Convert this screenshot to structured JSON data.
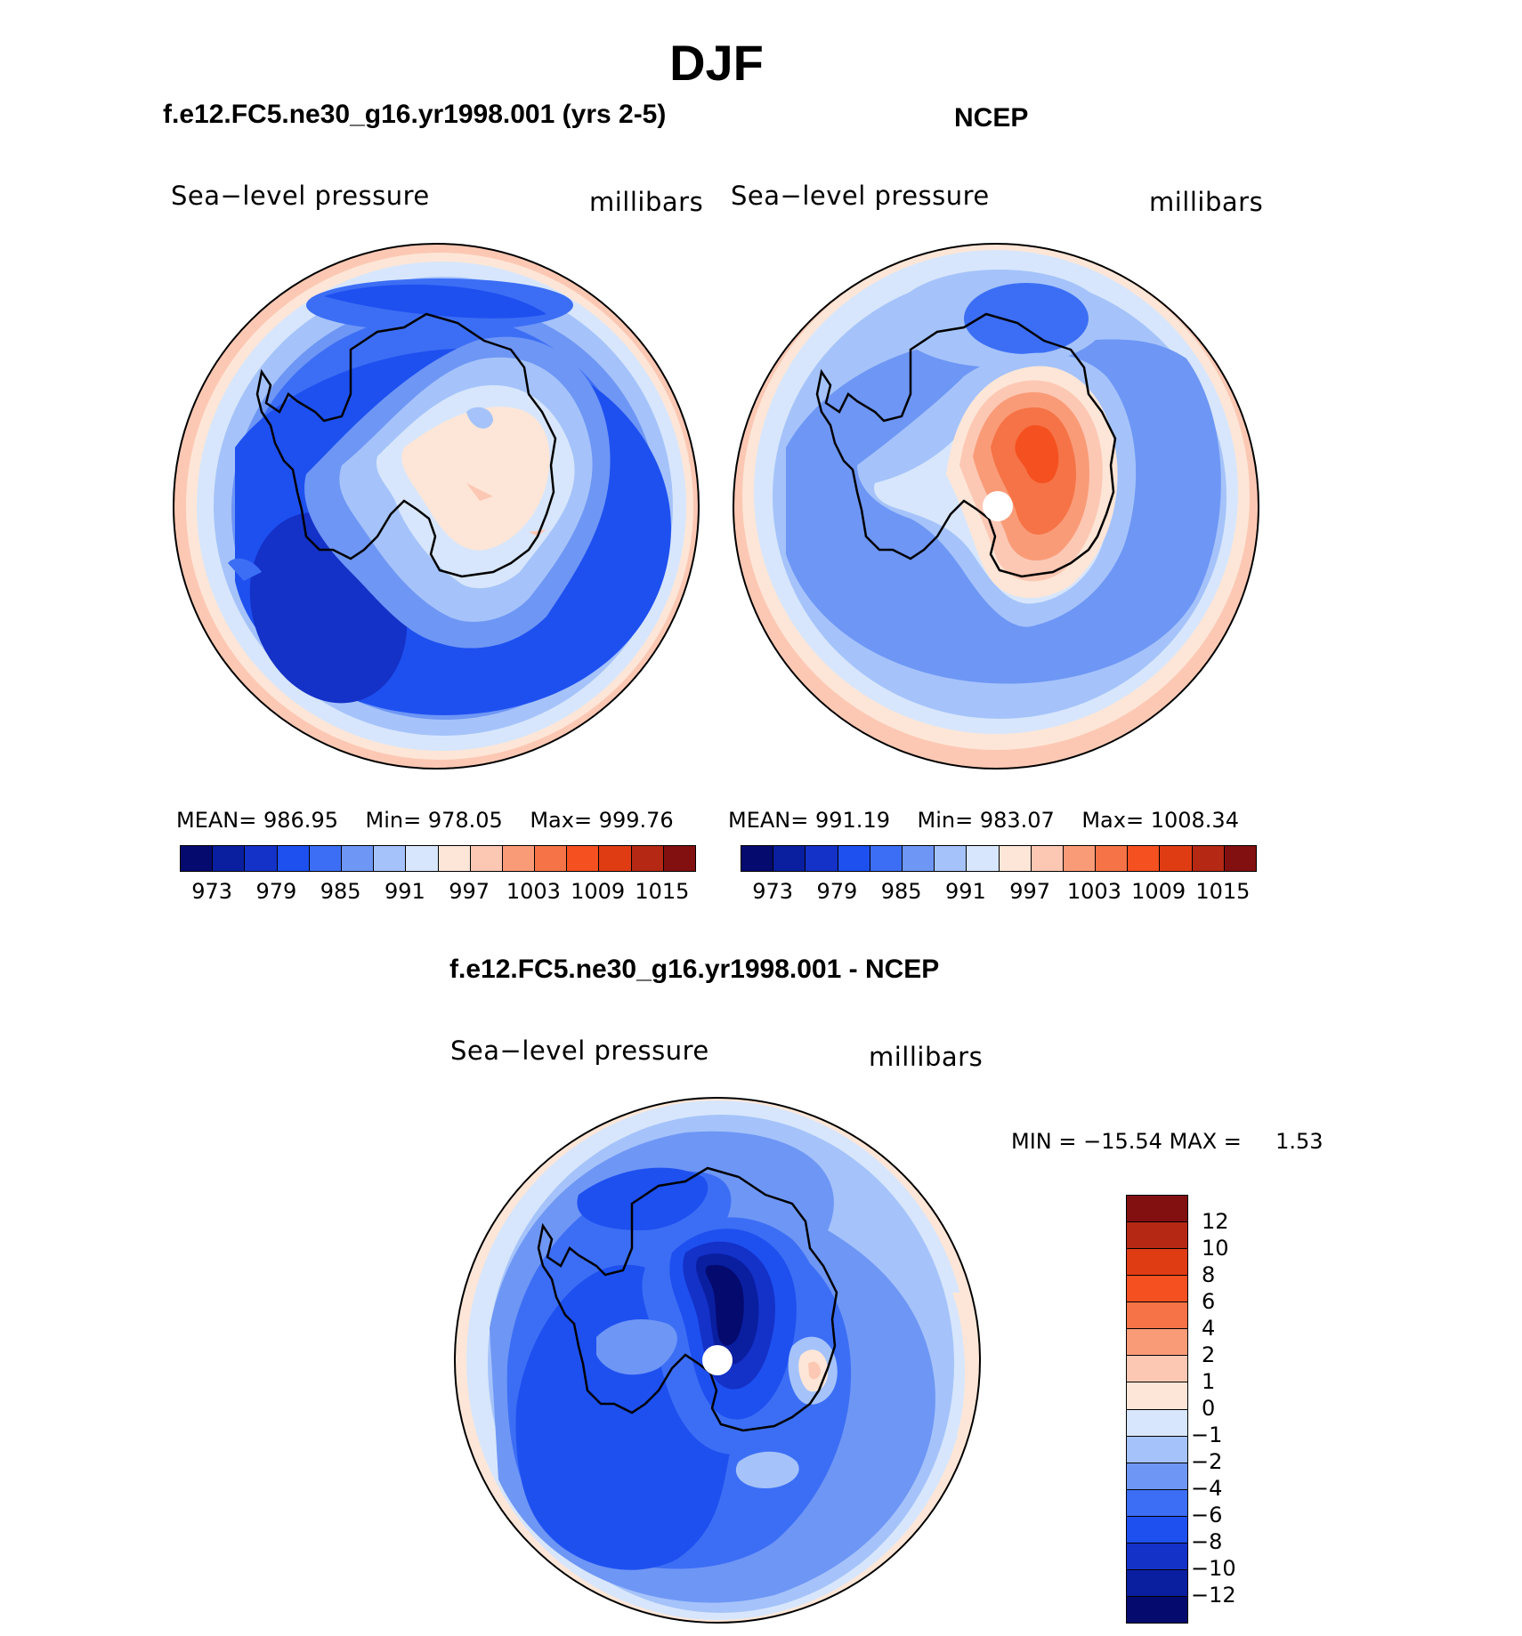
{
  "title": "DJF",
  "panels": {
    "model": {
      "title": "f.e12.FC5.ne30_g16.yr1998.001 (yrs 2-5)",
      "variable": "Sea−level pressure",
      "units": "millibars",
      "stats": {
        "mean_label": "MEAN=",
        "mean": "986.95",
        "min_label": "Min=",
        "min": "978.05",
        "max_label": "Max=",
        "max": "999.76"
      }
    },
    "obs": {
      "title": "NCEP",
      "variable": "Sea−level pressure",
      "units": "millibars",
      "stats": {
        "mean_label": "MEAN=",
        "mean": "991.19",
        "min_label": "Min=",
        "min": "983.07",
        "max_label": "Max=",
        "max": "1008.34"
      }
    },
    "diff": {
      "title": "f.e12.FC5.ne30_g16.yr1998.001 - NCEP",
      "variable": "Sea−level pressure",
      "units": "millibars",
      "stats": {
        "min_label": "MIN =",
        "min": "−15.54",
        "max_label": "MAX =",
        "max": "1.53"
      }
    }
  },
  "colorbar": {
    "colors": [
      "#050a6e",
      "#0a1ea0",
      "#1432c8",
      "#1e50f0",
      "#3c6ef5",
      "#6e96f5",
      "#a5c3fa",
      "#d7e6fc",
      "#fde6d7",
      "#fcc8b4",
      "#fa9b78",
      "#f57346",
      "#f55020",
      "#e03c14",
      "#b42814",
      "#821010"
    ],
    "ticks": [
      "973",
      "979",
      "985",
      "991",
      "997",
      "1003",
      "1009",
      "1015"
    ]
  },
  "diff_colorbar": {
    "colors": [
      "#050a6e",
      "#0a1ea0",
      "#1432c8",
      "#1e50f0",
      "#3c6ef5",
      "#6e96f5",
      "#a5c3fa",
      "#d7e6fc",
      "#fde6d7",
      "#fcc8b4",
      "#fa9b78",
      "#f57346",
      "#f55020",
      "#e03c14",
      "#b42814",
      "#821010"
    ],
    "ticks": [
      "12",
      "10",
      "8",
      "6",
      "4",
      "2",
      "1",
      "0",
      "−1",
      "−2",
      "−4",
      "−6",
      "−8",
      "−10",
      "−12"
    ]
  }
}
